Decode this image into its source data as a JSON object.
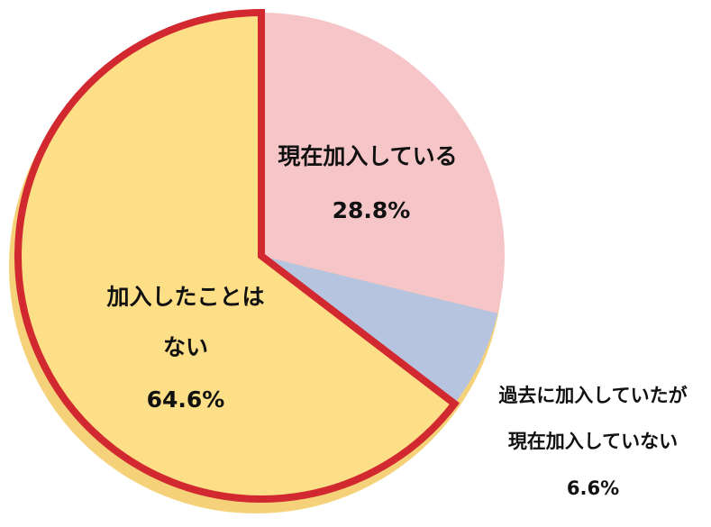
{
  "chart_data": {
    "type": "pie",
    "title": "",
    "slices": [
      {
        "label_lines": [
          "現在加入している"
        ],
        "value_label": "28.8%",
        "value": 28.8,
        "color": "#f5c5c8",
        "highlight": false
      },
      {
        "label_lines": [
          "過去に加入していたが",
          "現在加入していない"
        ],
        "value_label": "6.6%",
        "value": 6.6,
        "color": "#b7c4e0",
        "highlight": false
      },
      {
        "label_lines": [
          "加入したことは",
          "ない"
        ],
        "value_label": "64.6%",
        "value": 64.6,
        "color": "#fddf88",
        "highlight": true
      }
    ],
    "highlight_color": "#d2282f",
    "legend": "none"
  }
}
